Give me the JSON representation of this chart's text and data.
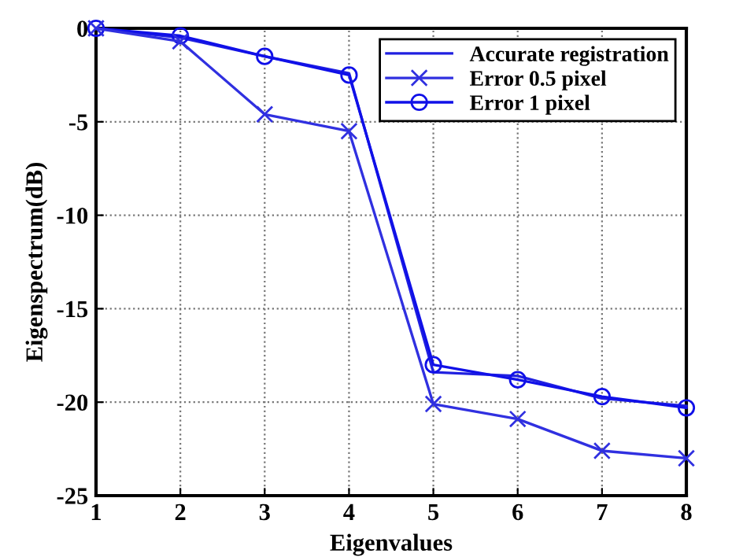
{
  "chart_data": {
    "type": "line",
    "xlabel": "Eigenvalues",
    "ylabel": "Eigenspectrum(dB)",
    "x": [
      1,
      2,
      3,
      4,
      5,
      6,
      7,
      8
    ],
    "series": [
      {
        "name": "Accurate registration",
        "color": "#2020e0",
        "marker": "none",
        "values": [
          0,
          -0.5,
          -1.5,
          -2.4,
          -18.4,
          -18.6,
          -19.8,
          -20.2
        ]
      },
      {
        "name": "Error 0.5 pixel",
        "color": "#3030e0",
        "marker": "cross",
        "values": [
          0,
          -0.7,
          -4.6,
          -5.5,
          -20.1,
          -20.9,
          -22.6,
          -23.0
        ]
      },
      {
        "name": "Error 1 pixel",
        "color": "#1010e8",
        "marker": "circle",
        "values": [
          0,
          -0.4,
          -1.5,
          -2.5,
          -18.0,
          -18.8,
          -19.7,
          -20.3
        ]
      }
    ],
    "xlim": [
      1,
      8
    ],
    "xticks": [
      1,
      2,
      3,
      4,
      5,
      6,
      7,
      8
    ],
    "ylim": [
      -25,
      0
    ],
    "yticks": [
      -25,
      -20,
      -15,
      -10,
      -5,
      0
    ],
    "grid": true,
    "legend": "top right",
    "line_style": "solid"
  }
}
